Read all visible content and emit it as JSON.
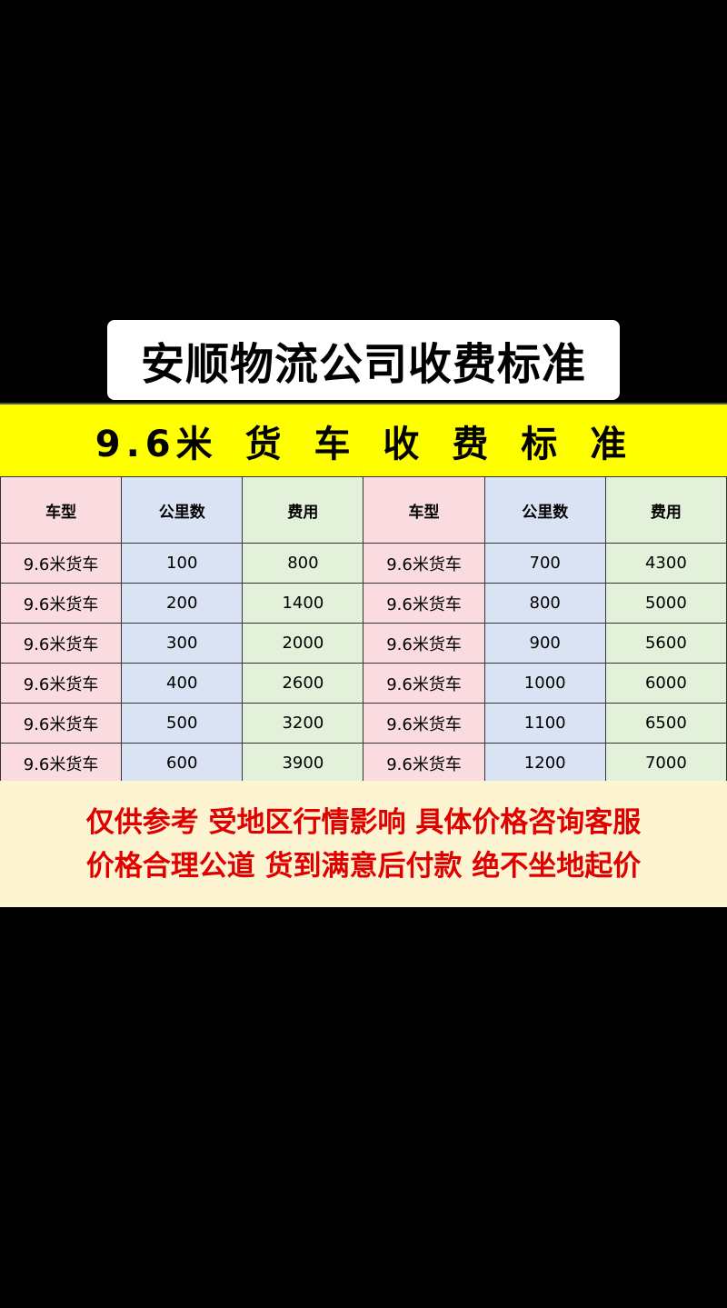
{
  "title": "安顺物流公司收费标准",
  "banner": "9.6米 货 车 收 费 标 准",
  "colors": {
    "vehicle_col": "#f9dbe0",
    "km_col": "#dae3f3",
    "fee_col": "#e3f0da",
    "banner": "#ffff00",
    "note_text": "#e00000"
  },
  "table": {
    "headers": [
      "车型",
      "公里数",
      "费用",
      "车型",
      "公里数",
      "费用"
    ],
    "rows": [
      [
        "9.6米货车",
        "100",
        "800",
        "9.6米货车",
        "700",
        "4300"
      ],
      [
        "9.6米货车",
        "200",
        "1400",
        "9.6米货车",
        "800",
        "5000"
      ],
      [
        "9.6米货车",
        "300",
        "2000",
        "9.6米货车",
        "900",
        "5600"
      ],
      [
        "9.6米货车",
        "400",
        "2600",
        "9.6米货车",
        "1000",
        "6000"
      ],
      [
        "9.6米货车",
        "500",
        "3200",
        "9.6米货车",
        "1100",
        "6500"
      ],
      [
        "9.6米货车",
        "600",
        "3900",
        "9.6米货车",
        "1200",
        "7000"
      ]
    ]
  },
  "note": {
    "line1": "仅供参考 受地区行情影响 具体价格咨询客服",
    "line2": "价格合理公道 货到满意后付款 绝不坐地起价"
  }
}
